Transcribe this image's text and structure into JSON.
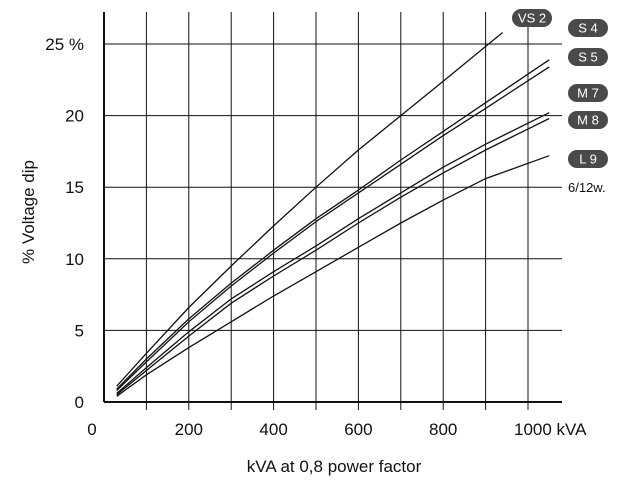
{
  "chart_data": {
    "type": "line",
    "xlabel": "kVA at 0,8 power factor",
    "ylabel": "% Voltage dip",
    "xlim": [
      0,
      1060
    ],
    "ylim": [
      0,
      26.5
    ],
    "x_ticks": [
      {
        "value": 0,
        "label": "0"
      },
      {
        "value": 200,
        "label": "200"
      },
      {
        "value": 400,
        "label": "400"
      },
      {
        "value": 600,
        "label": "600"
      },
      {
        "value": 800,
        "label": "800"
      },
      {
        "value": 1000,
        "label": "1000 kVA"
      }
    ],
    "y_ticks": [
      {
        "value": 0,
        "label": "0"
      },
      {
        "value": 5,
        "label": "5"
      },
      {
        "value": 10,
        "label": "10"
      },
      {
        "value": 15,
        "label": "15"
      },
      {
        "value": 20,
        "label": "20"
      },
      {
        "value": 25,
        "label": "25 %"
      }
    ],
    "grid": true,
    "grid_x_step": 100,
    "grid_y_step": 5,
    "series": [
      {
        "name": "VS 2",
        "points": [
          [
            30,
            1.1
          ],
          [
            100,
            3.4
          ],
          [
            200,
            6.6
          ],
          [
            300,
            9.5
          ],
          [
            400,
            12.3
          ],
          [
            500,
            15.0
          ],
          [
            600,
            17.6
          ],
          [
            700,
            20.0
          ],
          [
            800,
            22.4
          ],
          [
            940,
            25.8
          ]
        ]
      },
      {
        "name": "S 4",
        "points": [
          [
            30,
            0.9
          ],
          [
            100,
            3.0
          ],
          [
            200,
            5.8
          ],
          [
            300,
            8.3
          ],
          [
            400,
            10.6
          ],
          [
            500,
            12.8
          ],
          [
            600,
            14.8
          ],
          [
            700,
            16.9
          ],
          [
            800,
            18.9
          ],
          [
            900,
            20.9
          ],
          [
            1050,
            23.9
          ]
        ]
      },
      {
        "name": "S 5",
        "points": [
          [
            30,
            0.8
          ],
          [
            100,
            2.8
          ],
          [
            200,
            5.6
          ],
          [
            300,
            8.1
          ],
          [
            400,
            10.4
          ],
          [
            500,
            12.6
          ],
          [
            600,
            14.6
          ],
          [
            700,
            16.6
          ],
          [
            800,
            18.6
          ],
          [
            900,
            20.5
          ],
          [
            1050,
            23.4
          ]
        ]
      },
      {
        "name": "M 7",
        "points": [
          [
            30,
            0.6
          ],
          [
            100,
            2.4
          ],
          [
            200,
            4.9
          ],
          [
            300,
            7.2
          ],
          [
            400,
            9.1
          ],
          [
            500,
            10.9
          ],
          [
            600,
            12.8
          ],
          [
            700,
            14.6
          ],
          [
            800,
            16.4
          ],
          [
            900,
            18.0
          ],
          [
            1050,
            20.2
          ]
        ]
      },
      {
        "name": "M 8",
        "points": [
          [
            30,
            0.5
          ],
          [
            100,
            2.2
          ],
          [
            200,
            4.6
          ],
          [
            300,
            6.9
          ],
          [
            400,
            8.8
          ],
          [
            500,
            10.6
          ],
          [
            600,
            12.5
          ],
          [
            700,
            14.3
          ],
          [
            800,
            16.0
          ],
          [
            900,
            17.6
          ],
          [
            1050,
            19.8
          ]
        ]
      },
      {
        "name": "L 9",
        "points": [
          [
            30,
            0.4
          ],
          [
            100,
            1.9
          ],
          [
            200,
            3.8
          ],
          [
            300,
            5.6
          ],
          [
            400,
            7.4
          ],
          [
            500,
            9.1
          ],
          [
            600,
            10.8
          ],
          [
            700,
            12.5
          ],
          [
            800,
            14.1
          ],
          [
            900,
            15.6
          ],
          [
            1050,
            17.2
          ]
        ]
      }
    ],
    "badges": [
      "VS 2",
      "S 4",
      "S 5",
      "M 7",
      "M 8",
      "L 9"
    ],
    "note": "6/12w.",
    "colors": {
      "line": "#111111",
      "badge": "#4a4a4a",
      "badge_text": "#ffffff",
      "grid": "#111111"
    }
  }
}
